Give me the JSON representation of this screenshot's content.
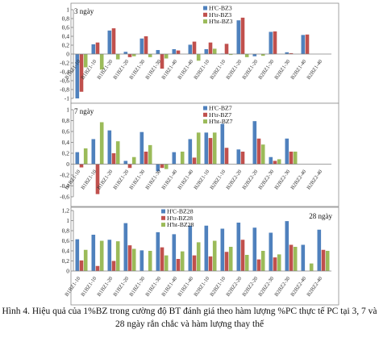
{
  "chart_data": [
    {
      "type": "bar",
      "title": "3 ngày",
      "ylim": [
        -1,
        1
      ],
      "yticks": [
        "-1",
        "-0,8",
        "-0,6",
        "-0,4",
        "-0,2",
        "0",
        "0,2",
        "0,4",
        "0,6",
        "0,8",
        "1"
      ],
      "legend_position": "top-right",
      "categories": [
        "B1BZ1-10",
        "B1BZ1-10",
        "B1BZ1-20",
        "B1BZ1-20",
        "B1BZ1-30",
        "B1BZ1-30",
        "B1BZ1-40",
        "B1BZ1-40",
        "B2BZ1-10",
        "B2BZ1-10",
        "B2BZ1-20",
        "B2BZ1-20",
        "B2BZ1-30",
        "B2BZ1-30",
        "B2BZ1-40",
        "B2BZ1-40"
      ],
      "series": [
        {
          "name": "H'C-BZ3",
          "color": "#4f81bd",
          "values": [
            -1.0,
            0.22,
            0.53,
            0.05,
            0.35,
            0.09,
            0.11,
            0.21,
            0.11,
            0.01,
            0.76,
            -0.05,
            0.5,
            0.04,
            0.43,
            0.0
          ]
        },
        {
          "name": "H'tr-BZ3",
          "color": "#c0504d",
          "values": [
            -0.85,
            0.26,
            0.58,
            -0.07,
            0.4,
            -0.33,
            0.08,
            0.28,
            0.26,
            0.23,
            0.82,
            0.0,
            0.51,
            0.02,
            0.44,
            0.0
          ]
        },
        {
          "name": "H'ht-BZ3",
          "color": "#9bbb59",
          "values": [
            -0.3,
            -0.35,
            -0.12,
            -0.05,
            -0.07,
            -0.1,
            0.0,
            -0.15,
            0.12,
            -0.02,
            -0.07,
            -0.04,
            0.0,
            0.0,
            0.0,
            0.0
          ]
        }
      ]
    },
    {
      "type": "bar",
      "title": "7 ngày",
      "ylim": [
        -0.6,
        1
      ],
      "yticks": [
        "-0,6",
        "-0,4",
        "-0,2",
        "0",
        "0,2",
        "0,4",
        "0,6",
        "0,8",
        "1"
      ],
      "legend_position": "top-right",
      "categories": [
        "B1BZ1-10",
        "B1BZ1-10",
        "B1BZ1-20",
        "B1BZ1-20",
        "B1BZ1-30",
        "B1BZ1-30",
        "B1BZ1-40",
        "B1BZ1-40",
        "B2BZ1-10",
        "B2BZ1-10",
        "B2BZ2-20",
        "B2BZ2-20",
        "B2BZ2-30",
        "B2BZ2-30",
        "B2BZ2-40",
        "B2BZ2-40"
      ],
      "series": [
        {
          "name": "H'C-BZ7",
          "color": "#4f81bd",
          "values": [
            0.22,
            0.46,
            0.62,
            0.06,
            0.59,
            -0.13,
            0.22,
            0.46,
            0.58,
            0.74,
            0.27,
            0.79,
            0.13,
            0.47,
            0.0,
            0.0
          ]
        },
        {
          "name": "H'tr-BZ7",
          "color": "#c0504d",
          "values": [
            -0.06,
            -0.55,
            0.2,
            -0.07,
            0.23,
            -0.07,
            0.0,
            0.12,
            0.48,
            0.3,
            0.23,
            0.47,
            0.06,
            0.23,
            0.0,
            0.0
          ]
        },
        {
          "name": "H'ht-BZ7",
          "color": "#9bbb59",
          "values": [
            0.29,
            0.77,
            0.42,
            0.13,
            0.35,
            -0.09,
            0.23,
            0.58,
            0.58,
            0.0,
            0.0,
            0.36,
            0.09,
            0.23,
            0.0,
            0.0
          ]
        }
      ]
    },
    {
      "type": "bar",
      "title": "28 ngày",
      "ylim": [
        0,
        1.2
      ],
      "yticks": [
        "0",
        "0,2",
        "0,4",
        "0,6",
        "0,8",
        "1",
        "1,2"
      ],
      "legend_position": "top-center",
      "categories": [
        "B1BZ1-10",
        "B1BZ1-10",
        "B1BZ1-20",
        "B1BZ1-20",
        "B1BZ1-30",
        "B1BZ1-30",
        "B1BZ1-40",
        "B1BZ1-40",
        "B2BZ1-10",
        "B2BZ1-10",
        "B2BZ2-20",
        "B2BZ2-20",
        "B2BZ2-30",
        "B2BZ2-30",
        "B2BZ2-40",
        "B2BZ2-40"
      ],
      "series": [
        {
          "name": "H'C-BZ28",
          "color": "#4f81bd",
          "values": [
            0.63,
            0.72,
            0.62,
            0.95,
            0.41,
            0.77,
            0.73,
            0.9,
            0.9,
            0.84,
            0.96,
            0.86,
            0.76,
            0.99,
            0.52,
            0.82
          ]
        },
        {
          "name": "H'tr-BZ28",
          "color": "#c0504d",
          "values": [
            0.21,
            0.1,
            0.2,
            0.51,
            0.0,
            0.47,
            0.24,
            0.31,
            0.29,
            0.38,
            0.62,
            0.23,
            0.27,
            0.52,
            0.0,
            0.42
          ]
        },
        {
          "name": "H'ht-BZ28",
          "color": "#9bbb59",
          "values": [
            0.42,
            0.6,
            0.59,
            0.44,
            0.4,
            0.31,
            0.39,
            0.57,
            0.6,
            0.48,
            0.32,
            0.4,
            0.33,
            0.48,
            0.15,
            0.4
          ]
        }
      ]
    }
  ],
  "caption": "Hình 4. Hiệu quả của 1%BZ trong cường độ BT đánh giá theo hàm lượng %PC thực tế PC tại 3, 7 và 28 ngày rắn chắc và hàm lượng thay thế"
}
